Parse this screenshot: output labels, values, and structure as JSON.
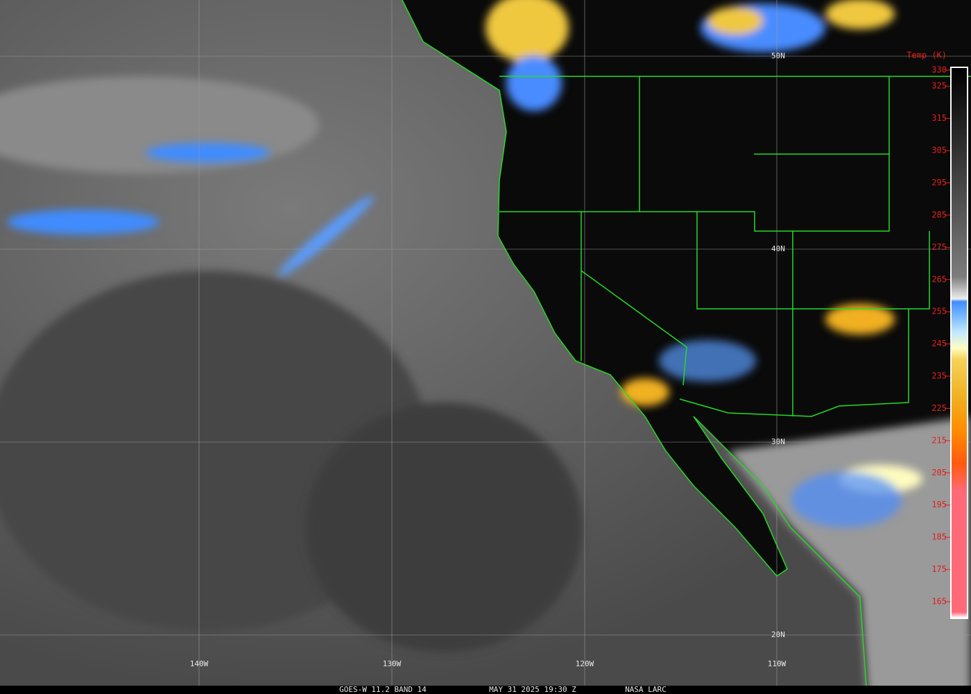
{
  "map": {
    "colorbar": {
      "title": "Temp (K)",
      "ticks": [
        330,
        325,
        315,
        305,
        295,
        285,
        275,
        265,
        255,
        245,
        235,
        225,
        215,
        205,
        195,
        185,
        175,
        165
      ]
    },
    "lat_labels": [
      "50N",
      "40N",
      "30N",
      "20N"
    ],
    "lon_labels": [
      "140W",
      "130W",
      "120W",
      "110W"
    ],
    "caption": [
      "GOES-W 11.2 BAND 14",
      "MAY 31 2025 19:30 Z",
      "NASA LARC"
    ]
  }
}
